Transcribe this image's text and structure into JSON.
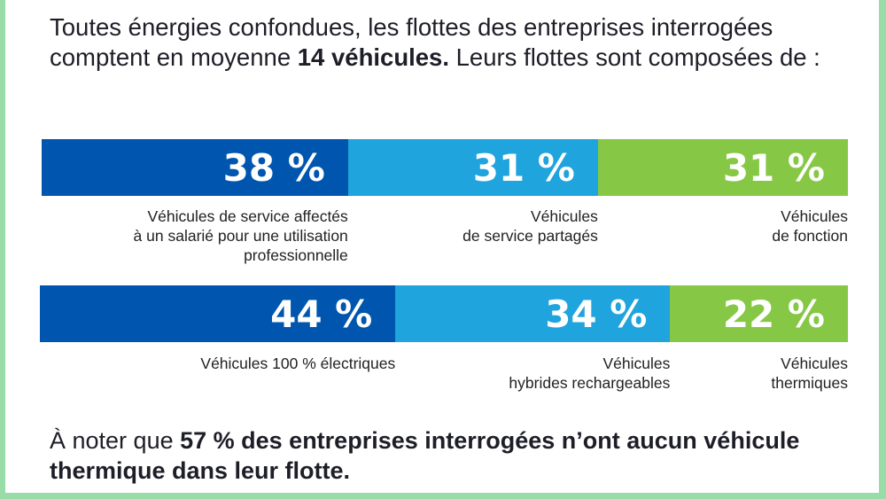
{
  "intro": {
    "text_before": "Toutes énergies confondues, les flottes des entreprises interrogées comptent en moyenne ",
    "bold": "14 véhicules.",
    "text_after": " Leurs flottes sont composées de :"
  },
  "chart_data": [
    {
      "type": "bar",
      "stacked": true,
      "orientation": "horizontal",
      "categories": [
        "Véhicules de service affectés\nà un salarié pour une utilisation\nprofessionnelle",
        "Véhicules\nde service partagés",
        "Véhicules\nde fonction"
      ],
      "values": [
        38,
        31,
        31
      ],
      "value_labels": [
        "38 %",
        "31 %",
        "31 %"
      ],
      "colors": [
        "#0056ae",
        "#1fa4dd",
        "#86c846"
      ]
    },
    {
      "type": "bar",
      "stacked": true,
      "orientation": "horizontal",
      "categories": [
        "Véhicules 100 % électriques",
        "Véhicules\nhybrides rechargeables",
        "Véhicules\nthermiques"
      ],
      "values": [
        44,
        34,
        22
      ],
      "value_labels": [
        "44 %",
        "34 %",
        "22 %"
      ],
      "colors": [
        "#0056ae",
        "#1fa4dd",
        "#86c846"
      ]
    }
  ],
  "note": {
    "text_before": "À noter que ",
    "bold": "57 % des entreprises interrogées n’ont aucun véhicule thermique dans leur flotte."
  },
  "frame_color": "#98dca8"
}
